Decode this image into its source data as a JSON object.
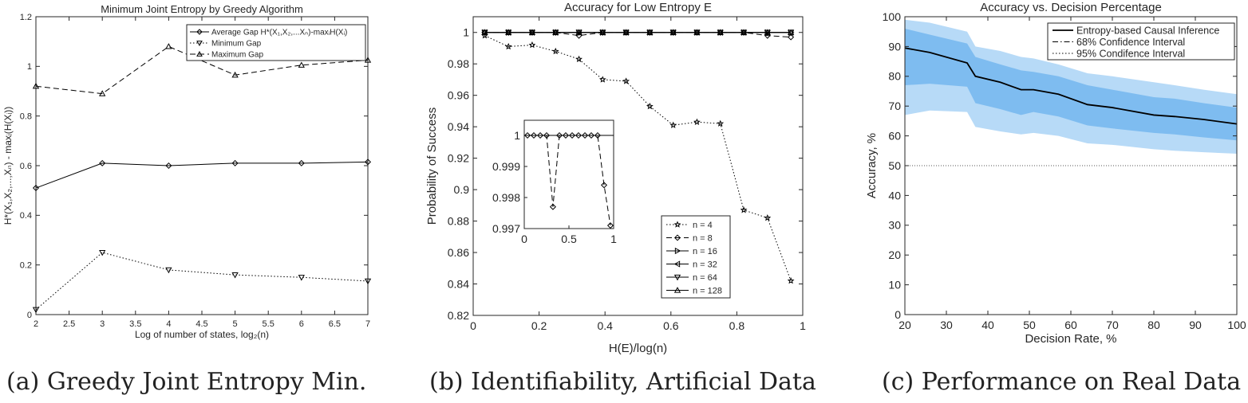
{
  "captions": {
    "a": "(a) Greedy Joint Entropy Min.",
    "b": "(b) Identifiability, Artificial Data",
    "c": "(c) Performance on Real Data"
  },
  "chart_data": [
    {
      "id": "a",
      "type": "line",
      "title": "Minimum Joint Entropy by Greedy Algorithm",
      "xlabel": "Log of number of states, log₂(n)",
      "ylabel": "H*(X₁,X₂,...,Xₙ) - maxᵢ(H(Xᵢ))",
      "xlim": [
        2,
        7
      ],
      "ylim": [
        0,
        1.2
      ],
      "xticks": [
        "2",
        "2.5",
        "3",
        "3.5",
        "4",
        "4.5",
        "5",
        "5.5",
        "6",
        "6.5",
        "7"
      ],
      "yticks": [
        "0",
        "0.2",
        "0.4",
        "0.6",
        "0.8",
        "1",
        "1.2"
      ],
      "x": [
        2,
        3,
        4,
        5,
        6,
        7
      ],
      "series": [
        {
          "name": "Average Gap H*(X₁,X₂,...Xₙ)-maxᵢH(Xᵢ)",
          "marker": "diamond",
          "dash": "solid",
          "values": [
            0.51,
            0.61,
            0.6,
            0.61,
            0.61,
            0.615
          ]
        },
        {
          "name": "Minimum Gap",
          "marker": "triangle-down",
          "dash": "dotted",
          "values": [
            0.02,
            0.25,
            0.18,
            0.16,
            0.15,
            0.135
          ]
        },
        {
          "name": "Maximum Gap",
          "marker": "triangle-up",
          "dash": "dashed",
          "values": [
            0.92,
            0.89,
            1.08,
            0.965,
            1.005,
            1.025
          ]
        }
      ]
    },
    {
      "id": "b",
      "type": "line",
      "title": "Accuracy for Low Entropy E",
      "xlabel": "H(E)/log(n)",
      "ylabel": "Probability of Success",
      "xlim": [
        0,
        1
      ],
      "ylim": [
        0.82,
        1.01
      ],
      "xticks": [
        "0",
        "0.2",
        "0.4",
        "0.6",
        "0.8",
        "1"
      ],
      "yticks": [
        "0.82",
        "0.84",
        "0.86",
        "0.88",
        "0.9",
        "0.92",
        "0.94",
        "0.96",
        "0.98",
        "1"
      ],
      "x": [
        0.035,
        0.107,
        0.179,
        0.25,
        0.321,
        0.393,
        0.464,
        0.536,
        0.607,
        0.679,
        0.75,
        0.821,
        0.893,
        0.964
      ],
      "series": [
        {
          "name": "n = 4",
          "marker": "star",
          "dash": "dotted",
          "values": [
            0.998,
            0.991,
            0.992,
            0.988,
            0.983,
            0.97,
            0.969,
            0.953,
            0.941,
            0.943,
            0.942,
            0.887,
            0.882,
            0.842
          ]
        },
        {
          "name": "n = 8",
          "marker": "diamond",
          "dash": "dashed",
          "values": [
            1,
            1,
            1,
            1,
            0.998,
            1,
            1,
            1,
            1,
            1,
            1,
            1,
            0.998,
            0.997
          ]
        },
        {
          "name": "n = 16",
          "marker": "triangle-right",
          "dash": "solid",
          "values": [
            1,
            1,
            1,
            1,
            1,
            1,
            1,
            1,
            1,
            1,
            1,
            1,
            1,
            1
          ]
        },
        {
          "name": "n = 32",
          "marker": "triangle-left",
          "dash": "solid",
          "values": [
            1,
            1,
            1,
            1,
            1,
            1,
            1,
            1,
            1,
            1,
            1,
            1,
            1,
            1
          ]
        },
        {
          "name": "n = 64",
          "marker": "triangle-down",
          "dash": "solid",
          "values": [
            1,
            1,
            1,
            1,
            1,
            1,
            1,
            1,
            1,
            1,
            1,
            1,
            1,
            1
          ]
        },
        {
          "name": "n = 128",
          "marker": "triangle-up",
          "dash": "solid",
          "values": [
            1,
            1,
            1,
            1,
            1,
            1,
            1,
            1,
            1,
            1,
            1,
            1,
            1,
            1
          ]
        }
      ],
      "inset": {
        "xlim": [
          0,
          1
        ],
        "ylim": [
          0.997,
          1.0
        ],
        "xticks": [
          "0",
          "0.5",
          "1"
        ],
        "yticks": [
          "0.997",
          "0.998",
          "0.999",
          "1"
        ],
        "series": [
          {
            "name": "n = 8",
            "marker": "diamond",
            "dash": "dashed",
            "x": [
              0.036,
              0.107,
              0.179,
              0.25,
              0.321,
              0.393,
              0.464,
              0.536,
              0.607,
              0.679,
              0.75,
              0.821,
              0.893,
              0.964
            ],
            "values": [
              1,
              1,
              1,
              1,
              0.9977,
              1,
              1,
              1,
              1,
              1,
              1,
              1,
              0.9984,
              0.9971
            ]
          }
        ]
      }
    },
    {
      "id": "c",
      "type": "area",
      "title": "Accuracy vs. Decision Percentage",
      "xlabel": "Decision Rate,  %",
      "ylabel": "Accuracy, %",
      "xlim": [
        20,
        100
      ],
      "ylim": [
        0,
        100
      ],
      "xticks": [
        "20",
        "30",
        "40",
        "50",
        "60",
        "70",
        "80",
        "90",
        "100"
      ],
      "yticks": [
        "0",
        "10",
        "20",
        "30",
        "40",
        "50",
        "60",
        "70",
        "80",
        "90",
        "100"
      ],
      "x": [
        20,
        26,
        35,
        37,
        43,
        48,
        51,
        57,
        64,
        70,
        80,
        85,
        92,
        100
      ],
      "series": [
        {
          "name": "Entropy-based Causal Inference",
          "dash": "solid",
          "values": [
            89.5,
            88,
            84.5,
            80,
            78,
            75.5,
            75.5,
            74,
            70.5,
            69.5,
            67,
            66.5,
            65.5,
            64
          ]
        },
        {
          "name": "68% Confidence Interval",
          "dash": "dashdot",
          "upper": [
            96,
            94,
            91,
            86.5,
            84,
            82,
            81.5,
            80,
            77,
            75.5,
            73,
            72.5,
            71,
            69.5
          ],
          "lower": [
            77,
            77.5,
            76.5,
            71,
            69,
            67,
            68,
            66.5,
            63.5,
            62.5,
            61,
            60.5,
            59.5,
            58.5
          ]
        },
        {
          "name": "95% Condifence Interval",
          "dash": "dotted",
          "upper": [
            99,
            98,
            95,
            90,
            88.5,
            86.5,
            86,
            84,
            81,
            80,
            78,
            77,
            75.5,
            74
          ],
          "lower": [
            67,
            68.5,
            68,
            63,
            61.5,
            60.5,
            61,
            60,
            57.5,
            57,
            55.5,
            55,
            54.5,
            54
          ]
        }
      ],
      "reference_line": 50
    }
  ]
}
